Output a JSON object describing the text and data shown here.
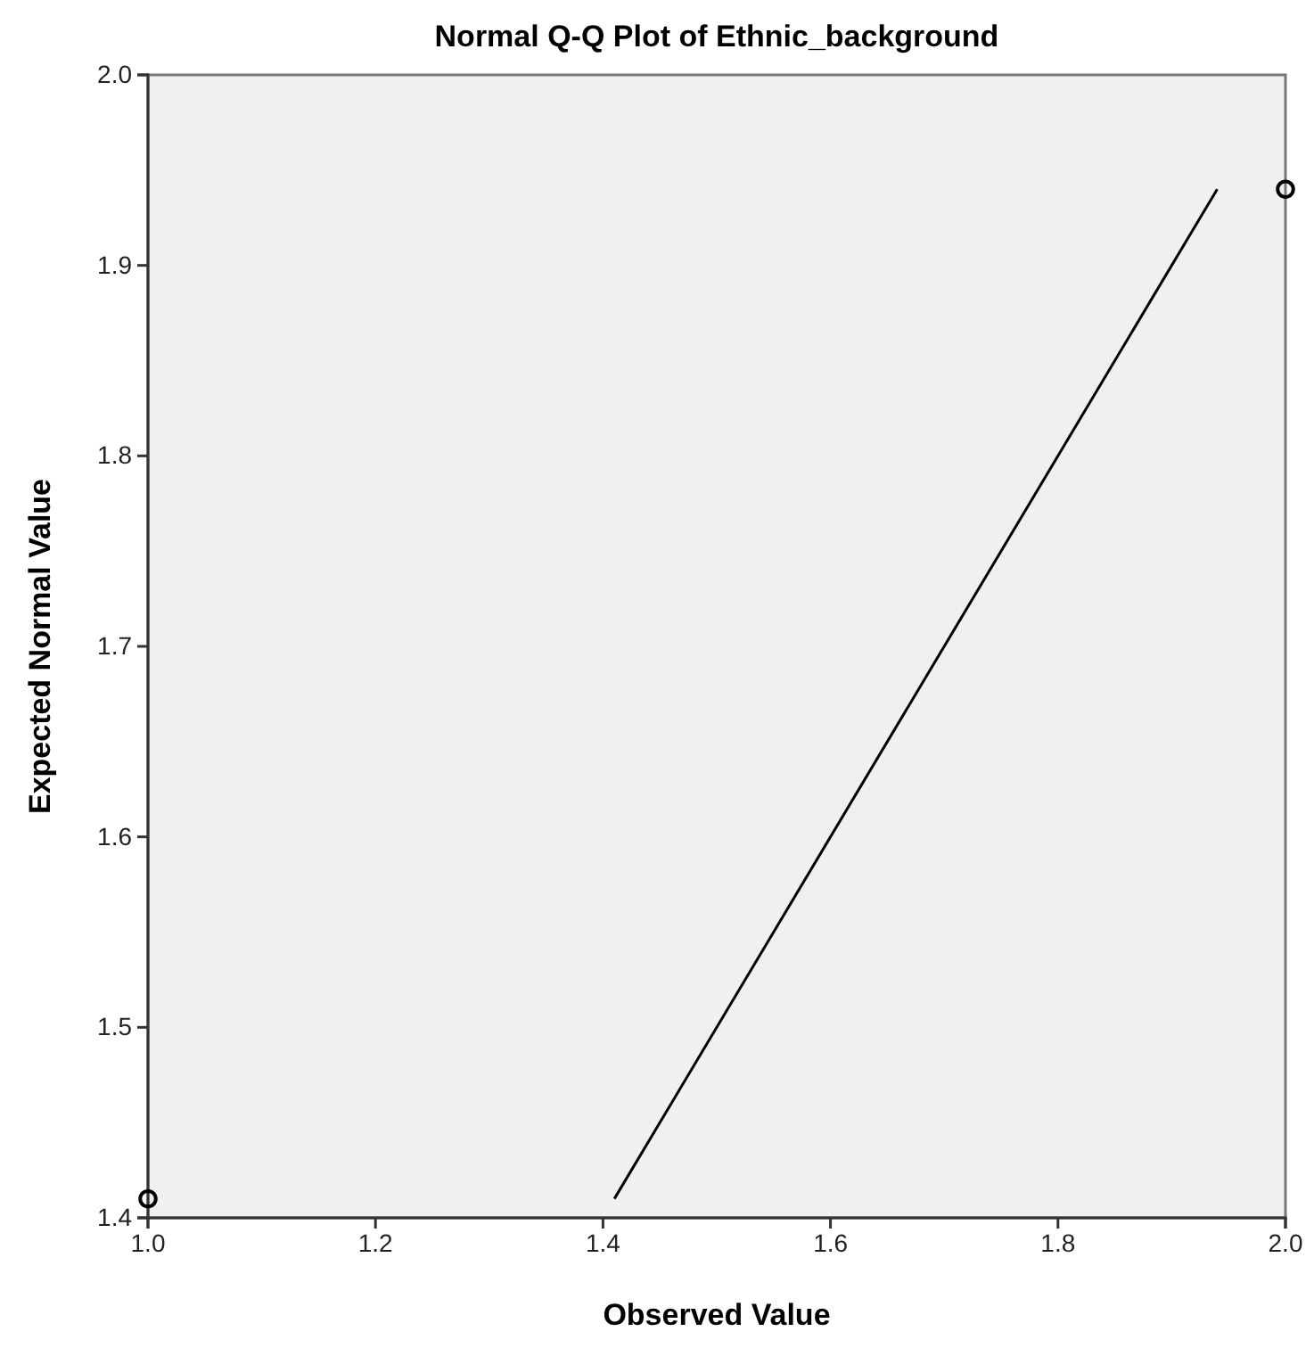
{
  "chart_data": {
    "type": "scatter",
    "title": "Normal Q-Q Plot of Ethnic_background",
    "xlabel": "Observed Value",
    "ylabel": "Expected Normal Value",
    "xlim": [
      1.0,
      2.0
    ],
    "xticks": [
      {
        "value": 1.0,
        "label": "1.0"
      },
      {
        "value": 1.2,
        "label": "1.2"
      },
      {
        "value": 1.4,
        "label": "1.4"
      },
      {
        "value": 1.6,
        "label": "1.6"
      },
      {
        "value": 1.8,
        "label": "1.8"
      },
      {
        "value": 2.0,
        "label": "2.0"
      }
    ],
    "ylim": [
      1.4,
      2.0
    ],
    "yticks": [
      {
        "value": 1.4,
        "label": "1.4"
      },
      {
        "value": 1.5,
        "label": "1.5"
      },
      {
        "value": 1.6,
        "label": "1.6"
      },
      {
        "value": 1.7,
        "label": "1.7"
      },
      {
        "value": 1.8,
        "label": "1.8"
      },
      {
        "value": 1.9,
        "label": "1.9"
      },
      {
        "value": 2.0,
        "label": "2.0"
      }
    ],
    "grid": false,
    "series": [
      {
        "color": "#000000",
        "marker": "circle",
        "x": [
          1.0,
          2.0
        ],
        "values": [
          1.41,
          1.94
        ]
      },
      {
        "type": "line",
        "color": "#000000",
        "marker": "none",
        "x": [
          1.41,
          1.94
        ],
        "values": [
          1.41,
          1.94
        ]
      }
    ]
  }
}
